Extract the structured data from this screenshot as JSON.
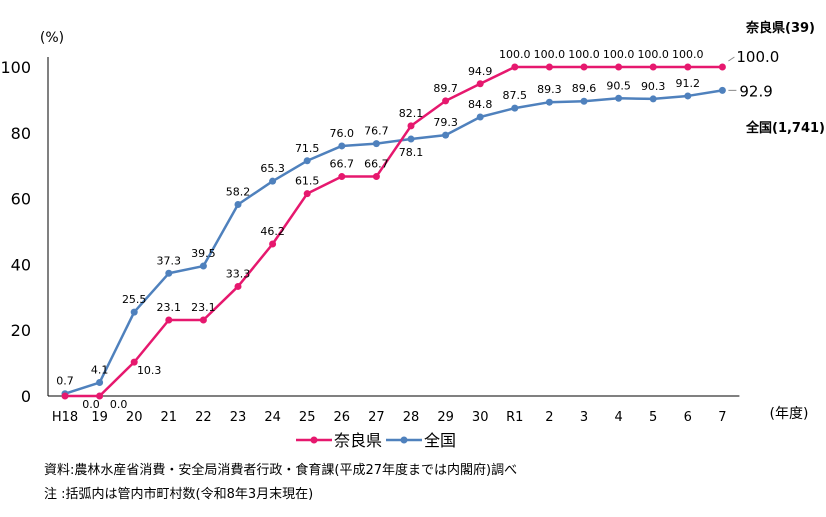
{
  "chart_data": {
    "type": "line",
    "y_unit_label": "(%)",
    "x_unit_label": "(年度)",
    "categories": [
      "H18",
      "19",
      "20",
      "21",
      "22",
      "23",
      "24",
      "25",
      "26",
      "27",
      "28",
      "29",
      "30",
      "R1",
      "2",
      "3",
      "4",
      "5",
      "6",
      "7"
    ],
    "y_ticks": [
      "0",
      "20",
      "40",
      "60",
      "80",
      "100"
    ],
    "ylim": [
      0,
      100
    ],
    "grid": false,
    "legend_position": "bottom-center",
    "series": [
      {
        "name": "奈良県",
        "color": "#e6186e",
        "values": [
          0.0,
          0.0,
          10.3,
          23.1,
          23.1,
          33.3,
          46.2,
          61.5,
          66.7,
          66.7,
          82.1,
          89.7,
          94.9,
          100.0,
          100.0,
          100.0,
          100.0,
          100.0,
          100.0,
          100.0
        ],
        "labels": [
          "0.0",
          "0.0",
          "10.3",
          "23.1",
          "23.1",
          "33.3",
          "46.2",
          "61.5",
          "66.7",
          "66.7",
          "82.1",
          "89.7",
          "94.9",
          "100.0",
          "100.0",
          "100.0",
          "100.0",
          "100.0",
          "100.0",
          "100.0"
        ],
        "end_label": "奈良県(39)"
      },
      {
        "name": "全国",
        "color": "#4f81bd",
        "values": [
          0.7,
          4.1,
          25.5,
          37.3,
          39.5,
          58.2,
          65.3,
          71.5,
          76.0,
          76.7,
          78.1,
          79.3,
          84.8,
          87.5,
          89.3,
          89.6,
          90.5,
          90.3,
          91.2,
          92.9
        ],
        "labels": [
          "0.7",
          "4.1",
          "25.5",
          "37.3",
          "39.5",
          "58.2",
          "65.3",
          "71.5",
          "76.0",
          "76.7",
          "78.1",
          "79.3",
          "84.8",
          "87.5",
          "89.3",
          "89.6",
          "90.5",
          "90.3",
          "91.2",
          "92.9"
        ],
        "end_label": "全国(1,741)"
      }
    ]
  },
  "notes": {
    "source": "資料:農林水産省消費・安全局消費者行政・食育課(平成27年度までは内閣府)調べ",
    "remark": " 注 :括弧内は管内市町村数(令和8年3月末現在)"
  }
}
